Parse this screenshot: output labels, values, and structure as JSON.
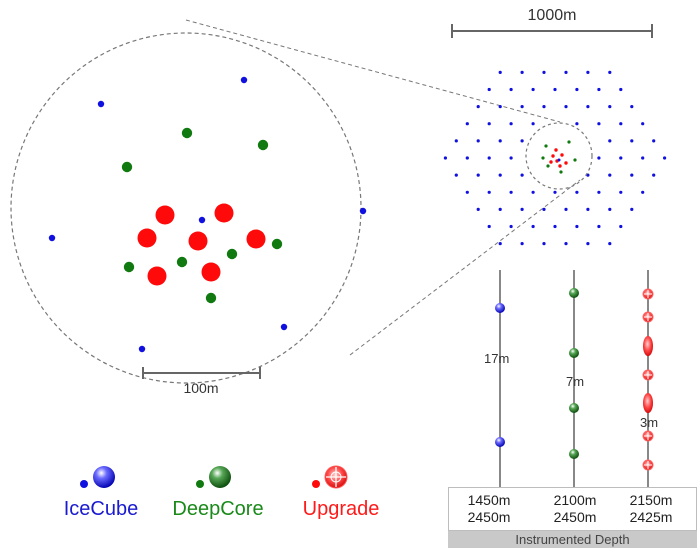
{
  "scale_top": "1000m",
  "scale_zoom": "100m",
  "spacings": {
    "icecube": "17m",
    "deepcore": "7m",
    "upgrade": "3m"
  },
  "legend": {
    "icecube": "IceCube",
    "deepcore": "DeepCore",
    "upgrade": "Upgrade"
  },
  "depths": [
    {
      "top": "1450m",
      "bottom": "2450m"
    },
    {
      "top": "2100m",
      "bottom": "2450m"
    },
    {
      "top": "2150m",
      "bottom": "2425m"
    }
  ],
  "depth_caption": "Instrumented Depth",
  "colors": {
    "icecube": "#1010e0",
    "deepcore": "#107a10",
    "upgrade": "#ff0a0a",
    "dashed": "#777777",
    "string": "#888888"
  }
}
